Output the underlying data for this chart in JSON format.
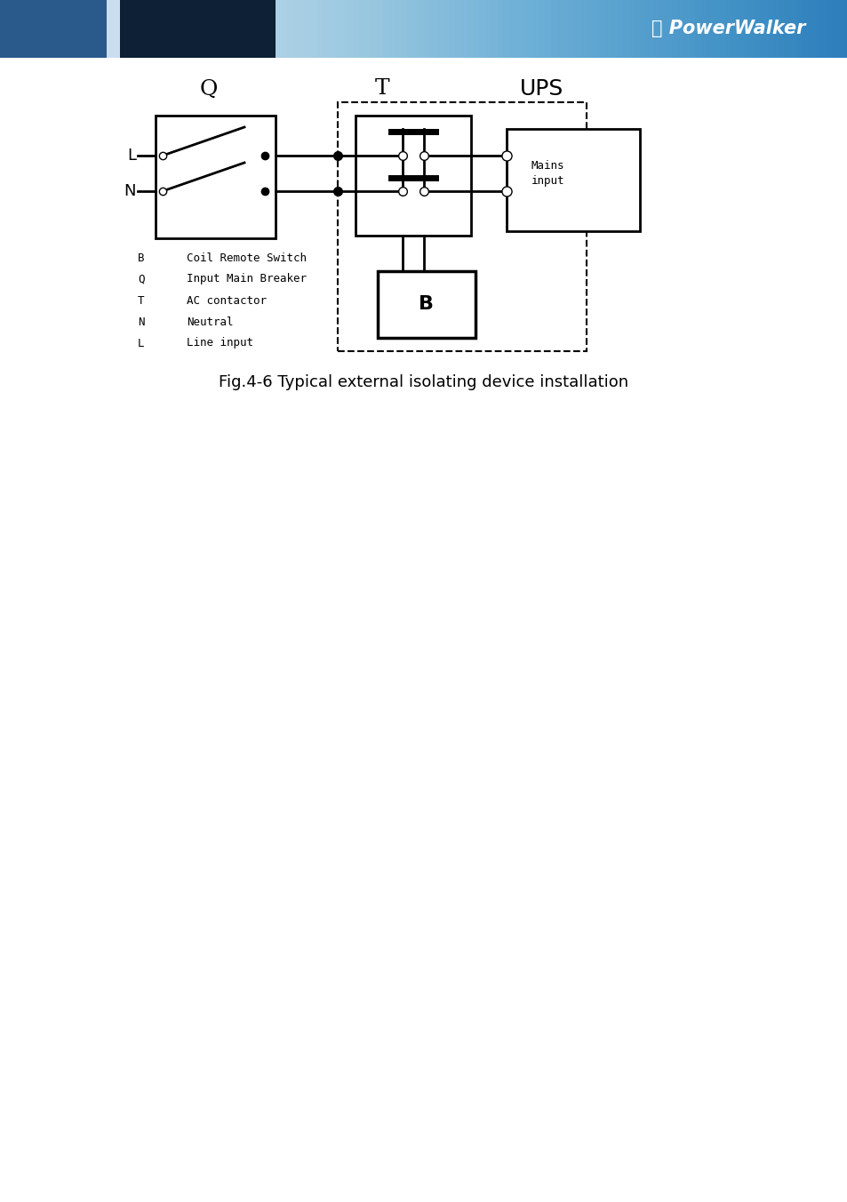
{
  "title": "Fig.4-6 Typical external isolating device installation",
  "title_fontsize": 13,
  "legend_items": [
    [
      "B",
      "Coil Remote Switch"
    ],
    [
      "Q",
      "Input Main Breaker"
    ],
    [
      "T",
      "AC contactor"
    ],
    [
      "N",
      "Neutral"
    ],
    [
      "L",
      "Line input"
    ]
  ]
}
